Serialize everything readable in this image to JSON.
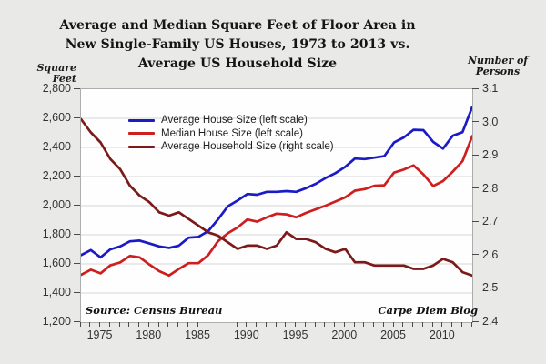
{
  "page": {
    "title_lines": [
      "Average and Median Square Feet of Floor Area in",
      "New Single-Family US Houses, 1973 to 2013 vs.",
      "Average US Household Size"
    ],
    "left_axis_title": "Square Feet",
    "right_axis_title_lines": [
      "Number of",
      "Persons"
    ],
    "source_note": "Source: Census Bureau",
    "credit": "Carpe Diem Blog"
  },
  "colors": {
    "background": "#e9e9e7",
    "plot_background": "#fefefe",
    "gridline": "#d7d7d7",
    "average_house_line": "#1b1bc6",
    "median_house_line": "#ce1e1e",
    "household_line": "#7c1a1a",
    "text": "#141414",
    "tick_text": "#333333"
  },
  "chart_data": {
    "type": "line",
    "title": "Average and Median Square Feet of Floor Area in New Single-Family US Houses, 1973 to 2013 vs. Average US Household Size",
    "x": [
      1973,
      1974,
      1975,
      1976,
      1977,
      1978,
      1979,
      1980,
      1981,
      1982,
      1983,
      1984,
      1985,
      1986,
      1987,
      1988,
      1989,
      1990,
      1991,
      1992,
      1993,
      1994,
      1995,
      1996,
      1997,
      1998,
      1999,
      2000,
      2001,
      2002,
      2003,
      2004,
      2005,
      2006,
      2007,
      2008,
      2009,
      2010,
      2011,
      2012,
      2013
    ],
    "series": [
      {
        "name": "Average House Size (left scale)",
        "axis": "left",
        "color": "#1b1bc6",
        "values": [
          1660,
          1695,
          1645,
          1700,
          1720,
          1755,
          1760,
          1740,
          1720,
          1710,
          1725,
          1780,
          1785,
          1825,
          1905,
          1995,
          2035,
          2080,
          2075,
          2095,
          2095,
          2100,
          2095,
          2120,
          2150,
          2190,
          2223,
          2266,
          2324,
          2320,
          2330,
          2340,
          2434,
          2469,
          2521,
          2519,
          2438,
          2392,
          2480,
          2505,
          2679
        ]
      },
      {
        "name": "Median House Size (left scale)",
        "axis": "left",
        "color": "#ce1e1e",
        "values": [
          1525,
          1560,
          1535,
          1590,
          1610,
          1655,
          1645,
          1595,
          1550,
          1520,
          1565,
          1605,
          1605,
          1660,
          1755,
          1810,
          1850,
          1905,
          1890,
          1920,
          1945,
          1940,
          1920,
          1950,
          1975,
          2000,
          2028,
          2057,
          2103,
          2114,
          2137,
          2140,
          2227,
          2248,
          2277,
          2215,
          2135,
          2169,
          2233,
          2306,
          2478
        ]
      },
      {
        "name": "Average Household Size (right scale)",
        "axis": "right",
        "color": "#7c1a1a",
        "values": [
          3.01,
          2.97,
          2.94,
          2.89,
          2.86,
          2.81,
          2.78,
          2.76,
          2.73,
          2.72,
          2.73,
          2.71,
          2.69,
          2.67,
          2.66,
          2.64,
          2.62,
          2.63,
          2.63,
          2.62,
          2.63,
          2.67,
          2.65,
          2.65,
          2.64,
          2.62,
          2.61,
          2.62,
          2.58,
          2.58,
          2.57,
          2.57,
          2.57,
          2.57,
          2.56,
          2.56,
          2.57,
          2.59,
          2.58,
          2.55,
          2.54
        ]
      }
    ],
    "left_axis": {
      "label": "Square Feet",
      "min": 1200,
      "max": 2800,
      "tick_step": 200,
      "tick_labels": [
        "2,800",
        "2,600",
        "2,400",
        "2,200",
        "2,000",
        "1,800",
        "1,600",
        "1,400",
        "1,200"
      ]
    },
    "right_axis": {
      "label": "Number of Persons",
      "min": 2.4,
      "max": 3.1,
      "tick_step": 0.1,
      "tick_labels": [
        "3.1",
        "3.0",
        "2.9",
        "2.8",
        "2.7",
        "2.6",
        "2.5",
        "2.4"
      ]
    },
    "x_axis": {
      "label_years": [
        1975,
        1980,
        1985,
        1990,
        1995,
        2000,
        2005,
        2010
      ],
      "tick_every_year": true
    },
    "grid": true,
    "legend_position": "top-left-inside"
  }
}
